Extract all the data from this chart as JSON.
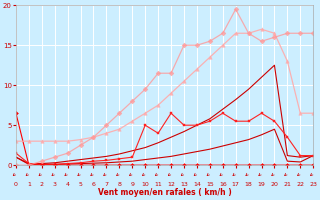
{
  "xlabel": "Vent moyen/en rafales ( km/h )",
  "xlim": [
    0,
    23
  ],
  "ylim": [
    0,
    20
  ],
  "xticks": [
    0,
    1,
    2,
    3,
    4,
    5,
    6,
    7,
    8,
    9,
    10,
    11,
    12,
    13,
    14,
    15,
    16,
    17,
    18,
    19,
    20,
    21,
    22,
    23
  ],
  "yticks": [
    0,
    5,
    10,
    15,
    20
  ],
  "bg_color": "#cceeff",
  "grid_color": "#ffffff",
  "series": [
    {
      "x": [
        0,
        1,
        2,
        3,
        4,
        5,
        6,
        7,
        8,
        9,
        10,
        11,
        12,
        13,
        14,
        15,
        16,
        17,
        18,
        19,
        20,
        21,
        22,
        23
      ],
      "y": [
        1.0,
        0.1,
        0.1,
        0.1,
        0.15,
        0.2,
        0.25,
        0.3,
        0.4,
        0.5,
        0.7,
        0.9,
        1.1,
        1.4,
        1.7,
        2.0,
        2.4,
        2.8,
        3.2,
        3.8,
        4.5,
        0.5,
        0.4,
        1.2
      ],
      "color": "#cc0000",
      "lw": 0.8,
      "marker": null,
      "ms": 0,
      "alpha": 1.0
    },
    {
      "x": [
        0,
        1,
        2,
        3,
        4,
        5,
        6,
        7,
        8,
        9,
        10,
        11,
        12,
        13,
        14,
        15,
        16,
        17,
        18,
        19,
        20,
        21,
        22,
        23
      ],
      "y": [
        1.0,
        0.2,
        0.2,
        0.3,
        0.5,
        0.7,
        0.9,
        1.1,
        1.4,
        1.8,
        2.2,
        2.8,
        3.5,
        4.2,
        5.0,
        5.8,
        7.0,
        8.2,
        9.5,
        11.0,
        12.5,
        1.2,
        1.0,
        1.2
      ],
      "color": "#cc0000",
      "lw": 0.8,
      "marker": null,
      "ms": 0,
      "alpha": 1.0
    },
    {
      "x": [
        0,
        1,
        2,
        3,
        4,
        5,
        6,
        7,
        8,
        9,
        10,
        11,
        12,
        13,
        14,
        15,
        16,
        17,
        18,
        19,
        20,
        21,
        22,
        23
      ],
      "y": [
        1.5,
        0.2,
        0.1,
        0.1,
        0.2,
        0.3,
        0.5,
        0.6,
        0.8,
        1.0,
        5.0,
        4.0,
        6.5,
        5.0,
        5.0,
        5.5,
        6.5,
        5.5,
        5.5,
        6.5,
        5.5,
        3.5,
        1.2,
        1.2
      ],
      "color": "#ff2222",
      "lw": 0.8,
      "marker": "s",
      "ms": 2.0,
      "alpha": 1.0
    },
    {
      "x": [
        0,
        1,
        2,
        3,
        4,
        5,
        6,
        7,
        8,
        9,
        10,
        11,
        12,
        13,
        14,
        15,
        16,
        17,
        18,
        19,
        20,
        21,
        22,
        23
      ],
      "y": [
        6.5,
        0.0,
        0.0,
        0.0,
        0.0,
        0.0,
        0.0,
        0.0,
        0.0,
        0.0,
        0.0,
        0.0,
        0.0,
        0.0,
        0.0,
        0.0,
        0.0,
        0.0,
        0.0,
        0.0,
        0.0,
        0.0,
        0.0,
        0.0
      ],
      "color": "#ff0000",
      "lw": 0.8,
      "marker": "D",
      "ms": 2.0,
      "alpha": 1.0
    },
    {
      "x": [
        0,
        1,
        2,
        3,
        4,
        5,
        6,
        7,
        8,
        9,
        10,
        11,
        12,
        13,
        14,
        15,
        16,
        17,
        18,
        19,
        20,
        21,
        22,
        23
      ],
      "y": [
        3.0,
        3.0,
        3.0,
        3.0,
        3.0,
        3.2,
        3.5,
        4.0,
        4.5,
        5.5,
        6.5,
        7.5,
        9.0,
        10.5,
        12.0,
        13.5,
        15.0,
        16.5,
        16.5,
        17.0,
        16.5,
        13.0,
        6.5,
        6.5
      ],
      "color": "#ffaaaa",
      "lw": 0.9,
      "marker": "^",
      "ms": 2.5,
      "alpha": 0.9
    },
    {
      "x": [
        0,
        1,
        2,
        3,
        4,
        5,
        6,
        7,
        8,
        9,
        10,
        11,
        12,
        13,
        14,
        15,
        16,
        17,
        18,
        19,
        20,
        21,
        22,
        23
      ],
      "y": [
        0.0,
        0.0,
        0.5,
        1.0,
        1.5,
        2.5,
        3.5,
        5.0,
        6.5,
        8.0,
        9.5,
        11.5,
        11.5,
        15.0,
        15.0,
        15.5,
        16.5,
        19.5,
        16.5,
        15.5,
        16.0,
        16.5,
        16.5,
        16.5
      ],
      "color": "#ff9999",
      "lw": 0.9,
      "marker": "D",
      "ms": 2.5,
      "alpha": 0.8
    }
  ],
  "font_color": "#cc0000",
  "arrow_color": "#cc0000"
}
